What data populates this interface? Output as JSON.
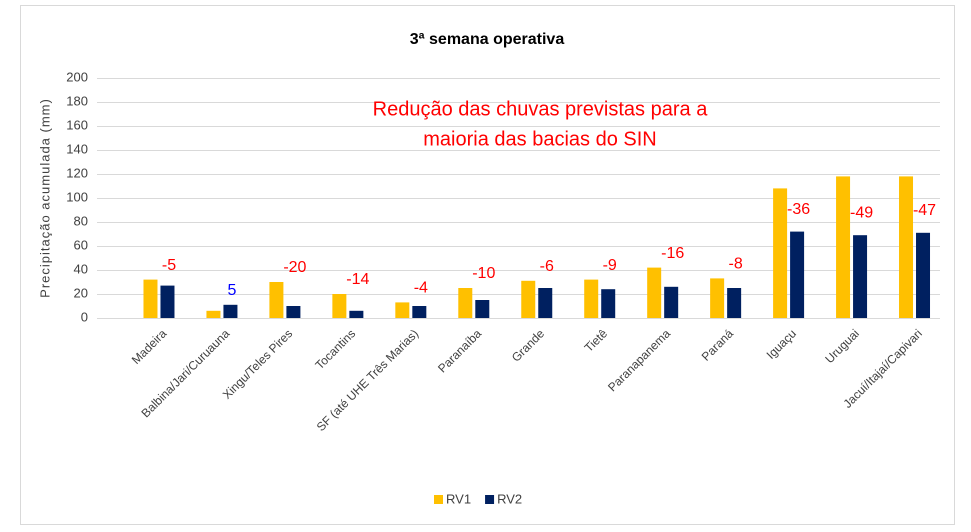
{
  "chart_data": {
    "type": "bar",
    "title": "3ª semana operativa",
    "y_label": "Precipitação acumulada (mm)",
    "annotation": [
      "Redução das chuvas previstas para a",
      "maioria das bacias do SIN"
    ],
    "annotation_color": "#ff0000",
    "categories": [
      "Madeira",
      "Balbina/Jari/Curuauna",
      "Xingu/Teles Pires",
      "Tocantins",
      "SF (até UHE Três Marias)",
      "Paranaíba",
      "Grande",
      "Tietê",
      "Paranapanema",
      "Paraná",
      "Iguaçu",
      "Uruguai",
      "Jacuí/Itajaí/Capivari"
    ],
    "series": [
      {
        "name": "RV1",
        "color": "#ffc000",
        "values": [
          32,
          6,
          30,
          20,
          13,
          25,
          31,
          32,
          42,
          33,
          108,
          118,
          118
        ]
      },
      {
        "name": "RV2",
        "color": "#002060",
        "values": [
          27,
          11,
          10,
          6,
          10,
          15,
          25,
          24,
          26,
          25,
          72,
          69,
          71
        ]
      }
    ],
    "differences": [
      -5,
      5,
      -20,
      -14,
      -4,
      -10,
      -6,
      -9,
      -16,
      -8,
      -36,
      -49,
      -47
    ],
    "difference_color_negative": "#ff0000",
    "difference_color_positive": "#0000ff",
    "ylim": [
      0,
      200
    ],
    "yticks": [
      0,
      20,
      40,
      60,
      80,
      100,
      120,
      140,
      160,
      180,
      200
    ],
    "grid": true,
    "legend": "bottom"
  }
}
